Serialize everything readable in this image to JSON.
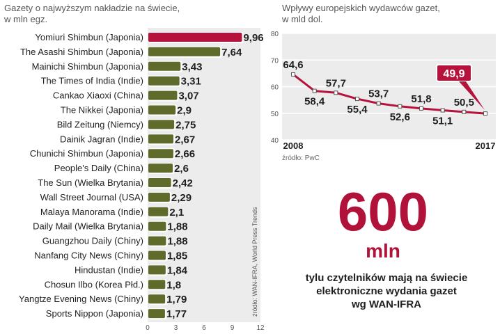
{
  "chart_data": [
    {
      "type": "bar",
      "title": "Gazety o najwyższym nakładzie na świecie,",
      "subtitle": "w mln egz.",
      "categories": [
        "Yomiuri Shimbun (Japonia)",
        "The Asashi Shimbun (Japonia)",
        "Mainichi Shimbun (Japonia)",
        "The Times of India (Indie)",
        "Cankao Xiaoxi (China)",
        "The Nikkei (Japonia)",
        "Bild Zeitung (Niemcy)",
        "Dainik Jagran (Indie)",
        "Chunichi Shimbun (Japonia)",
        "People's Daily (China)",
        "The Sun (Wielka Brytania)",
        "Wall Street Journal (USA)",
        "Malaya Manorama (Indie)",
        "Daily Mail (Wielka Brytania)",
        "Guangzhou Daily (Chiny)",
        "Nanfang City News (Chiny)",
        "Hindustan (Indie)",
        "Chosun Ilbo (Korea Płd.)",
        "Yangtze Evening News (Chiny)",
        "Sports Nippon (Japonia)"
      ],
      "values": [
        9.96,
        7.64,
        3.43,
        3.31,
        3.07,
        2.9,
        2.75,
        2.67,
        2.66,
        2.6,
        2.42,
        2.29,
        2.1,
        1.88,
        1.88,
        1.85,
        1.84,
        1.8,
        1.79,
        1.77
      ],
      "value_labels": [
        "9,96",
        "7,64",
        "3,43",
        "3,31",
        "3,07",
        "2,9",
        "2,75",
        "2,67",
        "2,66",
        "2,6",
        "2,42",
        "2,29",
        "2,1",
        "1,88",
        "1,88",
        "1,85",
        "1,84",
        "1,8",
        "1,79",
        "1,77"
      ],
      "xlim": [
        0,
        12
      ],
      "xticks": [
        "0",
        "3",
        "6",
        "9",
        "12"
      ],
      "source": "źródło: WAN-IFRA, World Press Trends",
      "colors": {
        "highlight": "#b5133c",
        "bar": "#5f6b2a",
        "background": "#ececec"
      }
    },
    {
      "type": "line",
      "title": "Wpływy europejskich wydawców gazet,",
      "subtitle": "w mld dol.",
      "x": [
        2008,
        2009,
        2010,
        2011,
        2012,
        2013,
        2014,
        2015,
        2016,
        2017
      ],
      "y": [
        64.6,
        58.4,
        57.7,
        55.4,
        53.7,
        52.6,
        51.8,
        51.1,
        50.5,
        49.9
      ],
      "value_labels": [
        "64,6",
        "58,4",
        "57,7",
        "55,4",
        "53,7",
        "52,6",
        "51,8",
        "51,1",
        "50,5",
        "49,9"
      ],
      "x_tick_labels": [
        "2008",
        "2017"
      ],
      "ylim": [
        40,
        80
      ],
      "yticks": [
        "40",
        "50",
        "60",
        "70",
        "80"
      ],
      "grid": true,
      "source": "źródło: PwC",
      "colors": {
        "line": "#b5133c",
        "grid": "#d8d8d8",
        "background": "#ececec"
      }
    }
  ],
  "highlight": {
    "number": "600",
    "unit": "mln",
    "caption_lines": [
      "tylu czytelników mają na świecie",
      "elektroniczne wydania gazet",
      "wg WAN-IFRA"
    ]
  }
}
